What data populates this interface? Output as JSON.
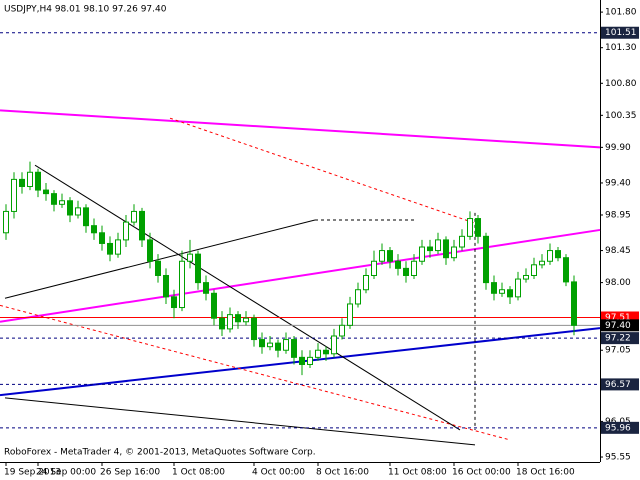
{
  "chart_data": {
    "type": "candlestick",
    "title": "USDJPY,H4  98.01 98.10 97.26 97.40",
    "footer": "RoboForex - MetaTrader 4, © 2001-2013, MetaQuotes Software Corp.",
    "categories": [
      "19 Sep 2013",
      null,
      null,
      null,
      "24 Sep 00:00",
      null,
      null,
      null,
      null,
      null,
      null,
      null,
      "26 Sep 16:00",
      null,
      null,
      null,
      null,
      null,
      null,
      null,
      null,
      "1 Oct 08:00",
      null,
      null,
      null,
      null,
      null,
      null,
      null,
      null,
      null,
      "4 Oct 00:00",
      null,
      null,
      null,
      null,
      null,
      null,
      null,
      "8 Oct 16:00",
      null,
      null,
      null,
      null,
      null,
      null,
      null,
      null,
      "11 Oct 08:00",
      null,
      null,
      null,
      null,
      null,
      null,
      null,
      "16 Oct 00:00",
      null,
      null,
      null,
      null,
      null,
      null,
      null,
      "18 Oct 16:00",
      null,
      null,
      null,
      null,
      null,
      null,
      null
    ],
    "candles": {
      "open": [
        98.7,
        99.0,
        99.45,
        99.35,
        99.55,
        99.3,
        99.25,
        99.1,
        99.15,
        98.95,
        99.05,
        98.8,
        98.7,
        98.55,
        98.4,
        98.6,
        98.85,
        99.0,
        98.6,
        98.3,
        98.1,
        97.8,
        97.65,
        98.3,
        98.4,
        98.0,
        97.85,
        97.5,
        97.35,
        97.55,
        97.45,
        97.5,
        97.2,
        97.1,
        97.15,
        97.05,
        97.2,
        96.95,
        96.85,
        96.95,
        97.05,
        97.0,
        97.25,
        97.4,
        97.7,
        97.9,
        98.1,
        98.3,
        98.45,
        98.3,
        98.2,
        98.1,
        98.3,
        98.5,
        98.45,
        98.6,
        98.35,
        98.5,
        98.65,
        98.9,
        98.65,
        98.0,
        97.85,
        97.9,
        97.8,
        98.05,
        98.1,
        98.25,
        98.3,
        98.45,
        98.35,
        98.01
      ],
      "high": [
        99.1,
        99.55,
        99.55,
        99.7,
        99.6,
        99.4,
        99.3,
        99.25,
        99.2,
        99.15,
        99.1,
        98.9,
        98.8,
        98.65,
        98.7,
        98.95,
        99.1,
        99.05,
        98.7,
        98.4,
        98.2,
        97.9,
        98.45,
        98.6,
        98.45,
        98.1,
        97.9,
        97.6,
        97.65,
        97.6,
        97.6,
        97.55,
        97.3,
        97.25,
        97.2,
        97.3,
        97.25,
        97.05,
        97.05,
        97.15,
        97.1,
        97.35,
        97.5,
        97.8,
        98.0,
        98.2,
        98.45,
        98.55,
        98.5,
        98.4,
        98.3,
        98.4,
        98.6,
        98.6,
        98.7,
        98.65,
        98.6,
        98.75,
        99.0,
        98.95,
        98.7,
        98.1,
        98.0,
        97.95,
        98.15,
        98.2,
        98.35,
        98.4,
        98.55,
        98.5,
        98.4,
        98.1
      ],
      "low": [
        98.6,
        98.9,
        99.25,
        99.3,
        99.2,
        99.15,
        99.0,
        99.05,
        98.85,
        98.9,
        98.7,
        98.6,
        98.45,
        98.3,
        98.35,
        98.5,
        98.8,
        98.5,
        98.2,
        98.0,
        97.7,
        97.5,
        97.6,
        98.2,
        97.9,
        97.75,
        97.4,
        97.25,
        97.3,
        97.35,
        97.4,
        97.1,
        97.0,
        97.05,
        96.95,
        97.0,
        96.85,
        96.7,
        96.8,
        96.9,
        96.9,
        96.95,
        97.2,
        97.35,
        97.65,
        97.85,
        98.05,
        98.25,
        98.2,
        98.1,
        98.0,
        98.05,
        98.25,
        98.35,
        98.4,
        98.25,
        98.3,
        98.45,
        98.6,
        98.55,
        97.9,
        97.75,
        97.8,
        97.7,
        97.75,
        98.0,
        98.05,
        98.2,
        98.25,
        98.3,
        97.95,
        97.26
      ],
      "close": [
        99.0,
        99.45,
        99.35,
        99.55,
        99.3,
        99.25,
        99.1,
        99.15,
        98.95,
        99.05,
        98.8,
        98.7,
        98.55,
        98.4,
        98.6,
        98.85,
        99.0,
        98.6,
        98.3,
        98.1,
        97.8,
        97.65,
        98.3,
        98.4,
        98.0,
        97.85,
        97.5,
        97.35,
        97.55,
        97.45,
        97.5,
        97.2,
        97.1,
        97.15,
        97.05,
        97.2,
        96.95,
        96.85,
        96.95,
        97.05,
        97.0,
        97.25,
        97.4,
        97.7,
        97.9,
        98.1,
        98.3,
        98.45,
        98.3,
        98.2,
        98.1,
        98.3,
        98.5,
        98.45,
        98.6,
        98.35,
        98.5,
        98.65,
        98.9,
        98.65,
        98.0,
        97.85,
        97.9,
        97.8,
        98.05,
        98.1,
        98.25,
        98.3,
        98.45,
        98.35,
        98.01,
        97.4
      ]
    },
    "candle_color": "#00a000",
    "up_fill": "#ffffff",
    "down_fill": "#00a000",
    "xlim": [
      -0.75,
      74.25
    ],
    "ylim": [
      95.48,
      101.97
    ],
    "yticks": [
      {
        "value": 101.8,
        "label": "101.80"
      },
      {
        "value": 101.3,
        "label": "101.30"
      },
      {
        "value": 100.8,
        "label": "100.80"
      },
      100.35,
      {
        "value": 99.9,
        "label": "99.90"
      },
      {
        "value": 99.4,
        "label": "99.40"
      },
      98.95,
      98.45,
      {
        "value": 98.0,
        "label": "98.00"
      },
      97.05,
      96.05,
      95.55
    ],
    "levels": [
      {
        "value": 101.51,
        "color": "#000080",
        "dash": true,
        "label_bg": "#1a2440"
      },
      {
        "value": 97.51,
        "color": "#ff0000",
        "dash": false,
        "label_bg": "#ff0000"
      },
      {
        "value": 97.4,
        "label": "97.40",
        "color": "#909090",
        "dash": false,
        "label_bg": "#000000"
      },
      {
        "value": 97.22,
        "color": "#000080",
        "dash": true,
        "label_bg": "#1a2440"
      },
      {
        "value": 96.57,
        "color": "#000080",
        "dash": true,
        "label_bg": "#1a2440"
      },
      {
        "value": 95.96,
        "color": "#000080",
        "dash": true,
        "label_bg": "#1a2440"
      }
    ],
    "trendlines": [
      {
        "x": [
          -0.75,
          74.25
        ],
        "y": [
          100.42,
          99.9
        ],
        "color": "#ff00ff",
        "dash": false,
        "width": 2
      },
      {
        "x": [
          -0.75,
          74.25
        ],
        "y": [
          97.45,
          98.74
        ],
        "color": "#ff00ff",
        "dash": false,
        "width": 2
      },
      {
        "x": [
          -0.75,
          74.25
        ],
        "y": [
          96.42,
          97.36
        ],
        "color": "#0000cc",
        "dash": false,
        "width": 2
      },
      {
        "x": [
          20.5,
          59.25
        ],
        "y": [
          100.31,
          98.81
        ],
        "color": "#ff0000",
        "dash": true,
        "width": 1
      },
      {
        "x": [
          -0.75,
          63
        ],
        "y": [
          97.68,
          95.79
        ],
        "color": "#ff0000",
        "dash": true,
        "width": 1
      },
      {
        "x": [
          3.625,
          56.75
        ],
        "y": [
          99.65,
          95.93
        ],
        "color": "#000000",
        "dash": false,
        "width": 1
      },
      {
        "x": [
          -0.125,
          38.625
        ],
        "y": [
          97.78,
          98.88
        ],
        "color": "#000000",
        "dash": false,
        "width": 1
      },
      {
        "x": [
          38.625,
          51.125
        ],
        "y": [
          98.88,
          98.88
        ],
        "color": "#000000",
        "dash": true,
        "width": 1
      },
      {
        "x": [
          -0.125,
          58.625
        ],
        "y": [
          96.38,
          95.72
        ],
        "color": "#000000",
        "dash": false,
        "width": 1
      },
      {
        "x": [
          58.625,
          58.625
        ],
        "y": [
          98.98,
          95.93
        ],
        "color": "#000000",
        "dash": true,
        "width": 1
      }
    ]
  }
}
